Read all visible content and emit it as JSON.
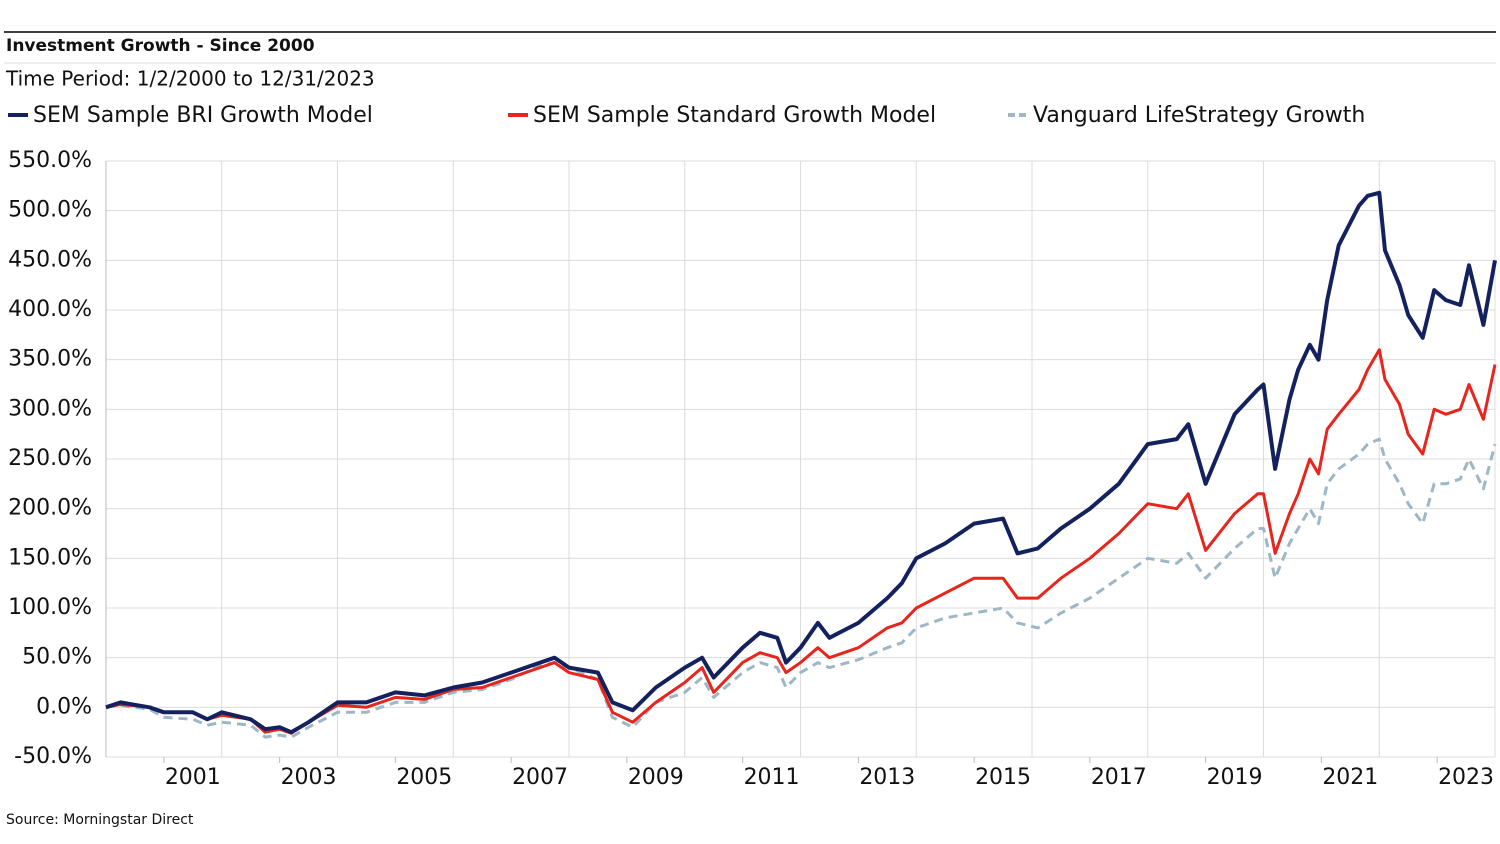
{
  "chart_data": {
    "type": "line",
    "title": "Investment Growth - Since 2000",
    "subtitle": "Time Period: 1/2/2000 to 12/31/2023",
    "source": "Source: Morningstar Direct",
    "x": [
      2000.0,
      2000.25,
      2000.75,
      2001.0,
      2001.5,
      2001.75,
      2002.0,
      2002.5,
      2002.75,
      2003.0,
      2003.2,
      2003.5,
      2004.0,
      2004.5,
      2005.0,
      2005.5,
      2006.0,
      2006.5,
      2007.0,
      2007.5,
      2007.75,
      2008.0,
      2008.5,
      2008.75,
      2009.1,
      2009.5,
      2010.0,
      2010.3,
      2010.5,
      2011.0,
      2011.3,
      2011.6,
      2011.75,
      2012.0,
      2012.3,
      2012.5,
      2013.0,
      2013.5,
      2013.75,
      2014.0,
      2014.5,
      2015.0,
      2015.5,
      2015.75,
      2016.1,
      2016.5,
      2017.0,
      2017.5,
      2018.0,
      2018.5,
      2018.7,
      2019.0,
      2019.5,
      2019.9,
      2020.0,
      2020.2,
      2020.45,
      2020.6,
      2020.8,
      2020.95,
      2021.1,
      2021.3,
      2021.65,
      2021.8,
      2022.0,
      2022.1,
      2022.35,
      2022.5,
      2022.75,
      2022.95,
      2023.15,
      2023.4,
      2023.55,
      2023.8,
      2024.0
    ],
    "series": [
      {
        "name": "SEM Sample BRI Growth Model",
        "color": "#13225f",
        "dash": false,
        "values": [
          0,
          5,
          0,
          -5,
          -5,
          -12,
          -5,
          -12,
          -22,
          -20,
          -25,
          -15,
          5,
          5,
          15,
          12,
          20,
          25,
          35,
          45,
          50,
          40,
          35,
          5,
          -3,
          20,
          40,
          50,
          30,
          60,
          75,
          70,
          45,
          60,
          85,
          70,
          85,
          110,
          125,
          150,
          165,
          185,
          190,
          155,
          160,
          180,
          200,
          225,
          265,
          270,
          285,
          225,
          295,
          320,
          325,
          240,
          310,
          340,
          365,
          350,
          410,
          465,
          505,
          515,
          518,
          460,
          425,
          395,
          372,
          420,
          410,
          405,
          445,
          385,
          450
        ]
      },
      {
        "name": "SEM Sample Standard Growth Model",
        "color": "#e8251c",
        "dash": false,
        "values": [
          0,
          3,
          0,
          -5,
          -5,
          -12,
          -8,
          -12,
          -25,
          -22,
          -26,
          -15,
          2,
          0,
          10,
          8,
          18,
          20,
          30,
          40,
          45,
          35,
          28,
          -5,
          -15,
          5,
          25,
          40,
          15,
          45,
          55,
          50,
          35,
          45,
          60,
          50,
          60,
          80,
          85,
          100,
          115,
          130,
          130,
          110,
          110,
          130,
          150,
          175,
          205,
          200,
          215,
          158,
          195,
          215,
          215,
          155,
          195,
          215,
          250,
          235,
          280,
          295,
          320,
          340,
          360,
          330,
          305,
          275,
          255,
          300,
          295,
          300,
          325,
          290,
          345
        ]
      },
      {
        "name": "Vanguard LifeStrategy Growth",
        "color": "#9db7c6",
        "dash": true,
        "values": [
          0,
          2,
          -2,
          -10,
          -12,
          -18,
          -15,
          -18,
          -30,
          -28,
          -30,
          -20,
          -5,
          -5,
          5,
          5,
          15,
          18,
          28,
          42,
          45,
          40,
          28,
          -10,
          -20,
          5,
          15,
          30,
          10,
          35,
          45,
          40,
          20,
          35,
          45,
          40,
          48,
          60,
          65,
          80,
          90,
          95,
          100,
          85,
          80,
          95,
          110,
          130,
          150,
          145,
          155,
          130,
          160,
          180,
          180,
          130,
          165,
          180,
          200,
          185,
          225,
          240,
          255,
          265,
          270,
          250,
          225,
          205,
          185,
          225,
          225,
          230,
          250,
          220,
          265
        ]
      }
    ],
    "xlim": [
      2000,
      2024
    ],
    "xticks": [
      2001,
      2003,
      2005,
      2007,
      2009,
      2011,
      2013,
      2015,
      2017,
      2019,
      2021,
      2023
    ],
    "xgrid": [
      2002,
      2004,
      2006,
      2008,
      2010,
      2012,
      2014,
      2016,
      2018,
      2020,
      2022,
      2024
    ],
    "ylim": [
      -50,
      550
    ],
    "yticks": [
      {
        "value": -50,
        "label": "-50.0%"
      },
      {
        "value": 0,
        "label": "0.0%"
      },
      {
        "value": 50,
        "label": "50.0%"
      },
      {
        "value": 100,
        "label": "100.0%"
      },
      {
        "value": 150,
        "label": "150.0%"
      },
      {
        "value": 200,
        "label": "200.0%"
      },
      {
        "value": 250,
        "label": "250.0%"
      },
      {
        "value": 300,
        "label": "300.0%"
      },
      {
        "value": 350,
        "label": "350.0%"
      },
      {
        "value": 400,
        "label": "400.0%"
      },
      {
        "value": 450,
        "label": "450.0%"
      },
      {
        "value": 500,
        "label": "500.0%"
      },
      {
        "value": 550,
        "label": "550.0%"
      }
    ],
    "grid": true
  }
}
